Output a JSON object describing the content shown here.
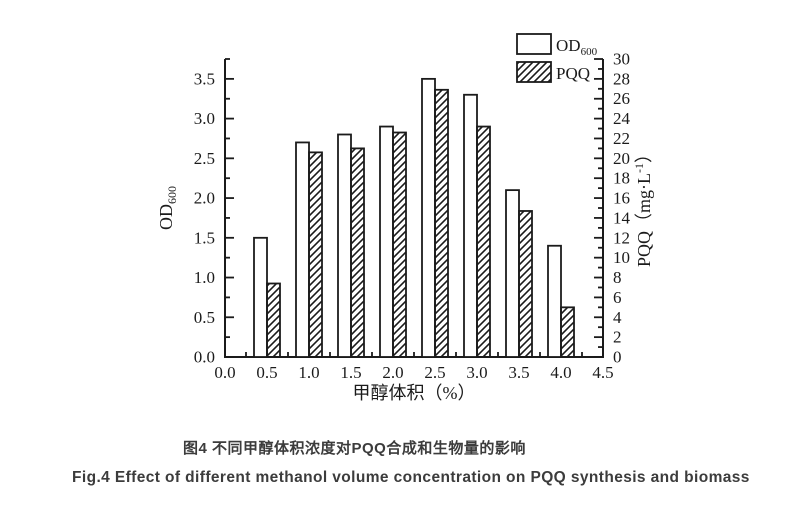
{
  "captions": {
    "chinese": "图4 不同甲醇体积浓度对PQQ合成和生物量的影响",
    "english": "Fig.4 Effect of different methanol volume concentration on PQQ synthesis and biomass"
  },
  "chart_data": {
    "type": "bar",
    "categories": [
      0.5,
      1.0,
      1.5,
      2.0,
      2.5,
      3.0,
      3.5,
      4.0
    ],
    "series": [
      {
        "name": "OD600",
        "axis": "left",
        "style": "open",
        "values": [
          1.5,
          2.7,
          2.8,
          2.9,
          3.5,
          3.3,
          2.1,
          1.4
        ]
      },
      {
        "name": "PQQ",
        "axis": "right",
        "style": "hatched",
        "values": [
          7.4,
          20.6,
          21.0,
          22.6,
          26.9,
          23.2,
          14.7,
          5.0
        ]
      }
    ],
    "xlabel": "甲醇体积（%）",
    "xlim": [
      0,
      4.5
    ],
    "x_ticks": [
      "0.0",
      "0.5",
      "1.0",
      "1.5",
      "2.0",
      "2.5",
      "3.0",
      "3.5",
      "4.0",
      "4.5"
    ],
    "x_tick_step": 0.5,
    "x_minor_step": 0.25,
    "left_axis": {
      "label_main": "OD",
      "label_sub": "600",
      "lim": [
        0,
        3.75
      ],
      "ticks": [
        "0.0",
        "0.5",
        "1.0",
        "1.5",
        "2.0",
        "2.5",
        "3.0",
        "3.5"
      ],
      "tick_step": 0.5,
      "minor_step": 0.25
    },
    "right_axis": {
      "label_prefix": "PQQ（mg·L",
      "label_sup": "-1",
      "label_suffix": "）",
      "lim": [
        0,
        30
      ],
      "ticks": [
        "0",
        "2",
        "4",
        "6",
        "8",
        "10",
        "12",
        "14",
        "16",
        "18",
        "20",
        "22",
        "24",
        "26",
        "28",
        "30"
      ],
      "tick_step": 2,
      "minor_step": 1
    },
    "legend": [
      {
        "label_main": "OD",
        "label_sub": "600",
        "swatch": "open"
      },
      {
        "label_main": "PQQ",
        "label_sub": "",
        "swatch": "hatched"
      }
    ],
    "legend_position": "top-right",
    "grid": "off",
    "colors": {
      "stroke": "#1b1b1b",
      "bar_fill": "#ffffff",
      "background": "#ffffff",
      "caption_text": "#3c3c3c"
    }
  }
}
